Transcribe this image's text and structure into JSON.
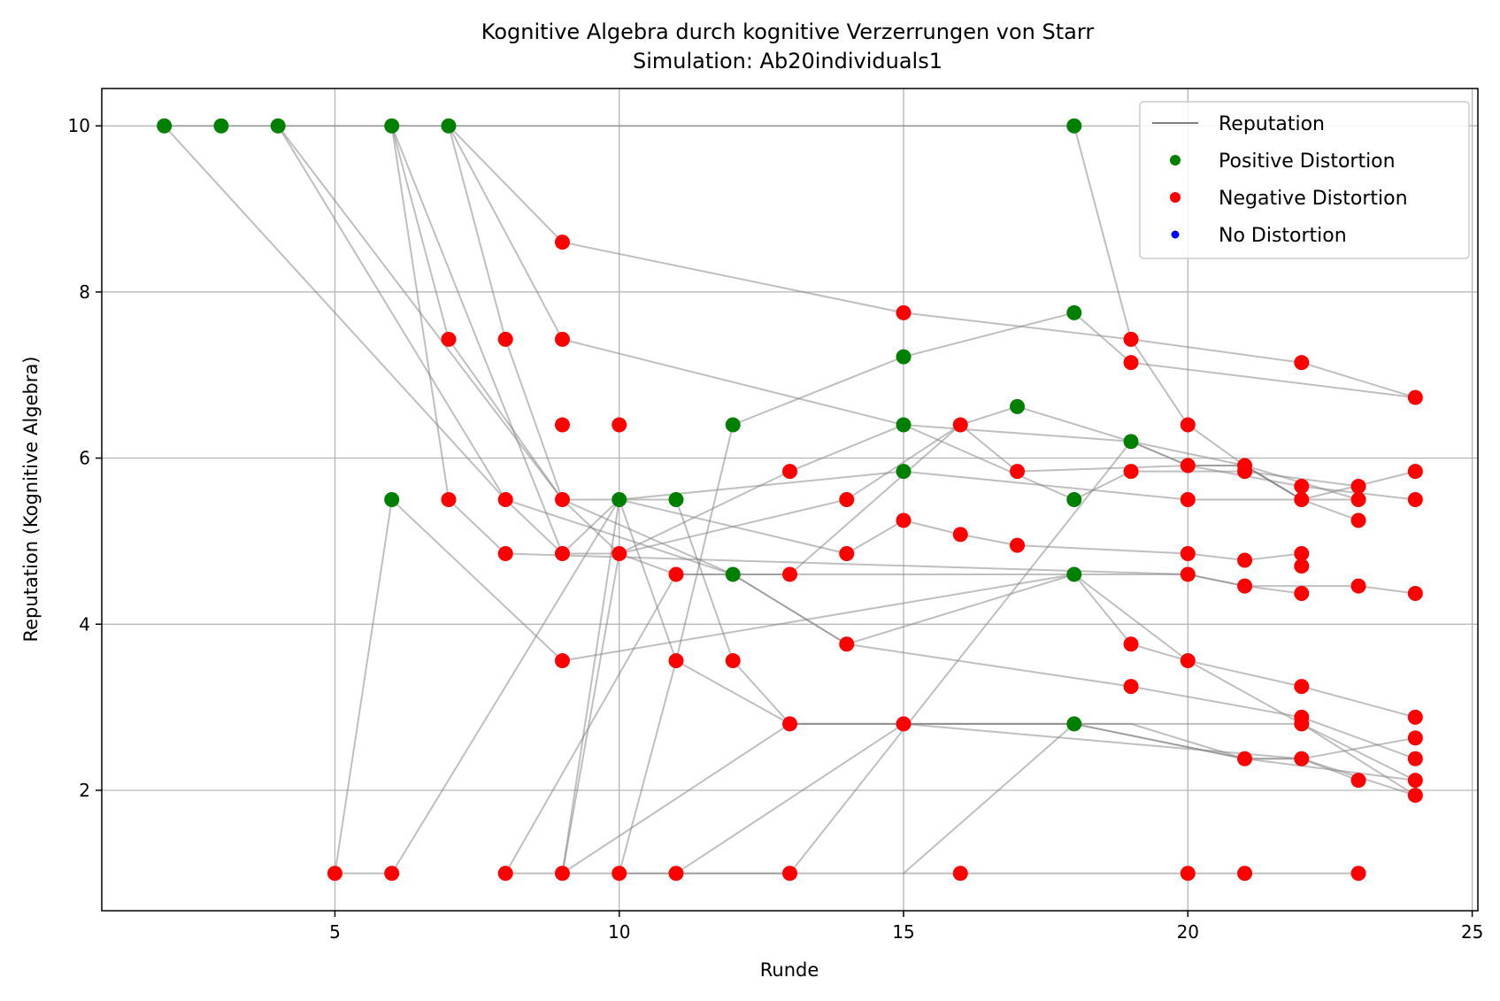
{
  "chart_data": {
    "type": "scatter",
    "title": "Kognitive Algebra durch kognitive Verzerrungen von Starr",
    "subtitle": "Simulation: Ab20individuals1",
    "xlabel": "Runde",
    "ylabel": "Reputation (Kognitive Algebra)",
    "xlim": [
      0.9,
      25.1
    ],
    "ylim": [
      0.55,
      10.45
    ],
    "xticks": [
      5,
      10,
      15,
      20,
      25
    ],
    "yticks": [
      2,
      4,
      6,
      8,
      10
    ],
    "grid": true,
    "legend_position": "top-right",
    "colors": {
      "line": "#808080",
      "positive": "#008000",
      "negative": "#ff0000",
      "none": "#0000ff"
    },
    "legend": [
      {
        "label": "Reputation",
        "kind": "line",
        "color": "#808080"
      },
      {
        "label": "Positive Distortion",
        "kind": "point",
        "color": "#008000"
      },
      {
        "label": "Negative Distortion",
        "kind": "point",
        "color": "#ff0000"
      },
      {
        "label": "No Distortion",
        "kind": "point",
        "color": "#0000ff"
      }
    ],
    "series": [
      {
        "points": [
          [
            2,
            10
          ],
          [
            3,
            10
          ],
          [
            4,
            10
          ],
          [
            6,
            10
          ],
          [
            7,
            10
          ],
          [
            18,
            10
          ],
          [
            19,
            7.43
          ],
          [
            20,
            6.4
          ],
          [
            21,
            5.91
          ],
          [
            22,
            5.5
          ],
          [
            23,
            5.25
          ]
        ]
      },
      {
        "points": [
          [
            2,
            10
          ],
          [
            8,
            5.5
          ],
          [
            12,
            4.6
          ],
          [
            14,
            3.76
          ],
          [
            19,
            3.25
          ],
          [
            22,
            2.88
          ],
          [
            24,
            2.38
          ]
        ]
      },
      {
        "points": [
          [
            4,
            10
          ],
          [
            8,
            5.5
          ],
          [
            9,
            4.85
          ],
          [
            10,
            4.85
          ],
          [
            11,
            4.6
          ],
          [
            20,
            4.6
          ],
          [
            21,
            4.46
          ],
          [
            22,
            4.37
          ]
        ]
      },
      {
        "points": [
          [
            4,
            10
          ],
          [
            9,
            5.5
          ],
          [
            10,
            5.5
          ],
          [
            11,
            3.56
          ],
          [
            12,
            6.4
          ],
          [
            15,
            7.22
          ],
          [
            18,
            7.75
          ],
          [
            19,
            7.15
          ],
          [
            24,
            6.73
          ]
        ]
      },
      {
        "points": [
          [
            6,
            10
          ],
          [
            7,
            5.5
          ],
          [
            8,
            4.85
          ],
          [
            20,
            4.6
          ],
          [
            21,
            4.46
          ],
          [
            23,
            4.46
          ],
          [
            24,
            4.37
          ]
        ]
      },
      {
        "points": [
          [
            6,
            10
          ],
          [
            7,
            7.43
          ],
          [
            9,
            5.5
          ],
          [
            10,
            4.85
          ],
          [
            13,
            5.84
          ],
          [
            15,
            6.4
          ],
          [
            19,
            6.2
          ],
          [
            20,
            5.91
          ],
          [
            22,
            5.66
          ],
          [
            24,
            5.5
          ]
        ]
      },
      {
        "points": [
          [
            6,
            10
          ],
          [
            9,
            4.85
          ],
          [
            10,
            5.5
          ],
          [
            11,
            5.5
          ],
          [
            12,
            3.56
          ],
          [
            13,
            2.8
          ],
          [
            18,
            2.8
          ],
          [
            21,
            2.38
          ],
          [
            22,
            2.38
          ],
          [
            23,
            2.12
          ]
        ]
      },
      {
        "points": [
          [
            7,
            10
          ],
          [
            8,
            7.43
          ],
          [
            9,
            5.5
          ],
          [
            12,
            4.6
          ],
          [
            14,
            3.76
          ],
          [
            18,
            4.6
          ],
          [
            19,
            3.76
          ],
          [
            20,
            3.56
          ],
          [
            22,
            2.8
          ],
          [
            24,
            1.94
          ]
        ]
      },
      {
        "points": [
          [
            7,
            10
          ],
          [
            9,
            8.6
          ],
          [
            15,
            7.75
          ],
          [
            19,
            7.43
          ],
          [
            22,
            7.15
          ],
          [
            24,
            6.73
          ]
        ]
      },
      {
        "points": [
          [
            7,
            10
          ],
          [
            9,
            7.43
          ],
          [
            15,
            6.4
          ],
          [
            18,
            5.5
          ],
          [
            19,
            5.84
          ],
          [
            21,
            5.84
          ],
          [
            23,
            5.66
          ]
        ]
      },
      {
        "points": [
          [
            5,
            1
          ],
          [
            6,
            5.5
          ],
          [
            9,
            3.56
          ],
          [
            18,
            4.6
          ],
          [
            20,
            3.56
          ],
          [
            22,
            3.25
          ],
          [
            24,
            2.88
          ]
        ]
      },
      {
        "points": [
          [
            5,
            1
          ],
          [
            6,
            1
          ],
          [
            10,
            5.5
          ],
          [
            15,
            5.84
          ],
          [
            20,
            5.5
          ],
          [
            23,
            5.5
          ]
        ]
      },
      {
        "points": [
          [
            8,
            1
          ],
          [
            11,
            4.6
          ],
          [
            13,
            4.6
          ],
          [
            16,
            6.4
          ],
          [
            17,
            5.84
          ],
          [
            20,
            5.91
          ],
          [
            21,
            5.91
          ],
          [
            22,
            5.5
          ]
        ]
      },
      {
        "points": [
          [
            9,
            1
          ],
          [
            10,
            5.5
          ],
          [
            14,
            4.85
          ],
          [
            15,
            5.25
          ],
          [
            16,
            5.08
          ],
          [
            17,
            4.95
          ],
          [
            20,
            4.85
          ],
          [
            21,
            4.77
          ],
          [
            22,
            4.85
          ]
        ]
      },
      {
        "points": [
          [
            9,
            1
          ],
          [
            10,
            4.85
          ],
          [
            14,
            5.5
          ],
          [
            16,
            6.4
          ],
          [
            17,
            6.62
          ],
          [
            19,
            6.2
          ],
          [
            21,
            5.91
          ],
          [
            22,
            5.5
          ],
          [
            24,
            5.84
          ]
        ]
      },
      {
        "points": [
          [
            10,
            1
          ],
          [
            11,
            1
          ],
          [
            15,
            2.8
          ],
          [
            18,
            2.8
          ],
          [
            21,
            2.38
          ],
          [
            24,
            2.12
          ]
        ]
      },
      {
        "points": [
          [
            11,
            1
          ],
          [
            13,
            1
          ],
          [
            19,
            6.2
          ],
          [
            20,
            5.91
          ],
          [
            21,
            5.91
          ],
          [
            23,
            5.5
          ]
        ]
      },
      {
        "points": [
          [
            8,
            1
          ],
          [
            9,
            1
          ],
          [
            13,
            2.8
          ],
          [
            15,
            2.8
          ],
          [
            22,
            2.38
          ],
          [
            24,
            2.63
          ]
        ]
      },
      {
        "points": [
          [
            9,
            1
          ],
          [
            10,
            1
          ],
          [
            13,
            1
          ],
          [
            16,
            1
          ],
          [
            20,
            1
          ],
          [
            21,
            1
          ],
          [
            23,
            1
          ]
        ]
      },
      {
        "points": [
          [
            10,
            1
          ],
          [
            11,
            3.56
          ],
          [
            13,
            2.8
          ],
          [
            19,
            2.8
          ],
          [
            21,
            2.38
          ],
          [
            22,
            2.38
          ],
          [
            24,
            1.94
          ]
        ]
      },
      {
        "points": [
          [
            15,
            1.0
          ],
          [
            18,
            2.8
          ],
          [
            22,
            2.8
          ],
          [
            24,
            2.12
          ]
        ]
      }
    ],
    "positive_points": [
      [
        2,
        10
      ],
      [
        3,
        10
      ],
      [
        4,
        10
      ],
      [
        6,
        10
      ],
      [
        7,
        10
      ],
      [
        18,
        10
      ],
      [
        6,
        5.5
      ],
      [
        10,
        5.5
      ],
      [
        11,
        5.5
      ],
      [
        12,
        6.4
      ],
      [
        12,
        4.6
      ],
      [
        15,
        7.22
      ],
      [
        15,
        6.4
      ],
      [
        15,
        5.84
      ],
      [
        17,
        6.62
      ],
      [
        18,
        7.75
      ],
      [
        18,
        5.5
      ],
      [
        18,
        4.6
      ],
      [
        18,
        2.8
      ],
      [
        19,
        6.2
      ]
    ],
    "negative_points": [
      [
        5,
        1
      ],
      [
        6,
        1
      ],
      [
        8,
        1
      ],
      [
        9,
        1
      ],
      [
        10,
        1
      ],
      [
        11,
        1
      ],
      [
        13,
        1
      ],
      [
        16,
        1
      ],
      [
        20,
        1
      ],
      [
        21,
        1
      ],
      [
        23,
        1
      ],
      [
        7,
        7.43
      ],
      [
        7,
        5.5
      ],
      [
        8,
        7.43
      ],
      [
        8,
        5.5
      ],
      [
        8,
        4.85
      ],
      [
        9,
        8.6
      ],
      [
        9,
        7.43
      ],
      [
        9,
        6.4
      ],
      [
        9,
        5.5
      ],
      [
        9,
        4.85
      ],
      [
        9,
        3.56
      ],
      [
        10,
        6.4
      ],
      [
        10,
        4.85
      ],
      [
        11,
        4.6
      ],
      [
        11,
        3.56
      ],
      [
        12,
        3.56
      ],
      [
        13,
        5.84
      ],
      [
        13,
        4.6
      ],
      [
        13,
        2.8
      ],
      [
        14,
        5.5
      ],
      [
        14,
        4.85
      ],
      [
        14,
        3.76
      ],
      [
        15,
        7.75
      ],
      [
        15,
        5.25
      ],
      [
        15,
        2.8
      ],
      [
        16,
        6.4
      ],
      [
        16,
        5.08
      ],
      [
        17,
        5.84
      ],
      [
        17,
        4.95
      ],
      [
        19,
        7.43
      ],
      [
        19,
        7.15
      ],
      [
        19,
        5.84
      ],
      [
        19,
        3.76
      ],
      [
        19,
        3.25
      ],
      [
        20,
        6.4
      ],
      [
        20,
        5.91
      ],
      [
        20,
        5.5
      ],
      [
        20,
        4.85
      ],
      [
        20,
        4.6
      ],
      [
        20,
        3.56
      ],
      [
        21,
        5.91
      ],
      [
        21,
        5.84
      ],
      [
        21,
        4.77
      ],
      [
        21,
        4.46
      ],
      [
        21,
        2.38
      ],
      [
        22,
        7.15
      ],
      [
        22,
        5.66
      ],
      [
        22,
        5.5
      ],
      [
        22,
        4.85
      ],
      [
        22,
        4.7
      ],
      [
        22,
        4.37
      ],
      [
        22,
        3.25
      ],
      [
        22,
        2.88
      ],
      [
        22,
        2.8
      ],
      [
        22,
        2.38
      ],
      [
        23,
        5.66
      ],
      [
        23,
        5.5
      ],
      [
        23,
        5.25
      ],
      [
        23,
        4.46
      ],
      [
        23,
        2.12
      ],
      [
        24,
        6.73
      ],
      [
        24,
        5.84
      ],
      [
        24,
        5.5
      ],
      [
        24,
        4.37
      ],
      [
        24,
        2.88
      ],
      [
        24,
        2.63
      ],
      [
        24,
        2.38
      ],
      [
        24,
        2.12
      ],
      [
        24,
        1.94
      ]
    ]
  }
}
